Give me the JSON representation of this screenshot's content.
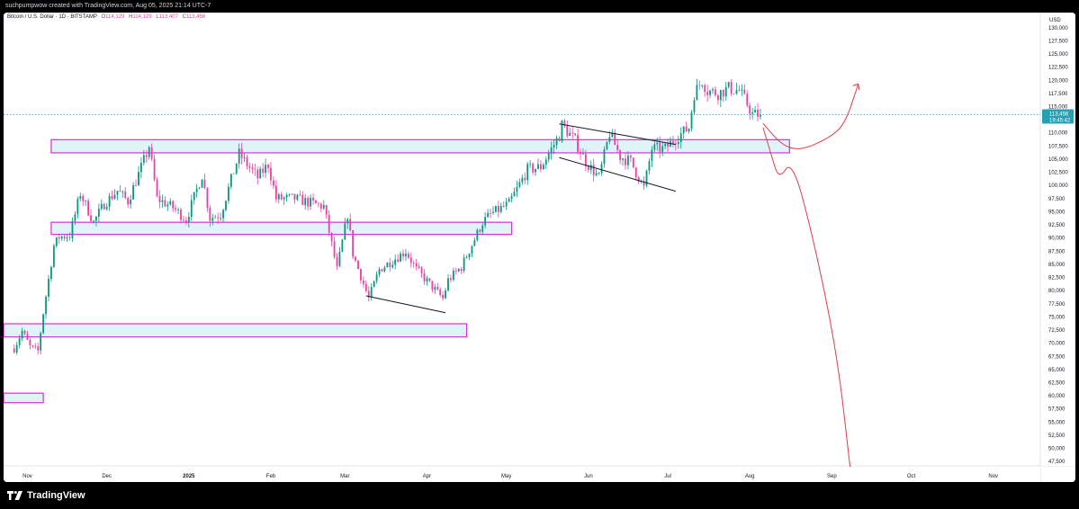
{
  "header": {
    "attribution": "suchpumpwow created with TradingView.com, Aug 05, 2025 21:14 UTC-7"
  },
  "legend": {
    "symbol": "Bitcoin / U.S. Dollar · 1D · BITSTAMP",
    "o_label": "O",
    "o_value": "114,129",
    "h_label": "H",
    "h_value": "114,129",
    "l_label": "L",
    "l_value": "113,407",
    "c_label": "C",
    "c_value": "113,456"
  },
  "footer": {
    "logo_text": "TradingView"
  },
  "colors": {
    "up": "#089981",
    "down": "#f23da5",
    "box_stroke": "#d42fd8",
    "box_fill": "#e0f4f8",
    "drawing_red": "#e03b46",
    "price_tag": "#26a0b3"
  },
  "chart_data": {
    "type": "candlestick",
    "currency_label": "USD",
    "y_ticks": [
      "130,000",
      "127,500",
      "125,000",
      "122,500",
      "120,000",
      "117,500",
      "115,000",
      "113,456",
      "110,000",
      "107,500",
      "105,000",
      "102,500",
      "100,000",
      "97,500",
      "95,000",
      "92,500",
      "90,000",
      "87,500",
      "85,000",
      "82,500",
      "80,000",
      "77,500",
      "75,000",
      "72,500",
      "70,000",
      "67,500",
      "65,000",
      "62,500",
      "60,000",
      "57,500",
      "55,000",
      "52,500",
      "50,000",
      "47,500"
    ],
    "y_tick_values": [
      130000,
      127500,
      125000,
      122500,
      120000,
      117500,
      115000,
      null,
      110000,
      107500,
      105000,
      102500,
      100000,
      97500,
      95000,
      92500,
      90000,
      87500,
      85000,
      82500,
      80000,
      77500,
      75000,
      72500,
      70000,
      67500,
      65000,
      62500,
      60000,
      57500,
      55000,
      52500,
      50000,
      47500
    ],
    "ylim": [
      46000,
      131500
    ],
    "last_price": 113456,
    "last_price_label": "113,456",
    "countdown_label": "19:45:42",
    "x_labels": [
      "Nov",
      "Dec",
      "2025",
      "Feb",
      "Mar",
      "Apr",
      "May",
      "Jun",
      "Jul",
      "Aug",
      "Sep",
      "Oct",
      "Nov"
    ],
    "x_label_dates": [
      "2024-11-01",
      "2024-12-01",
      "2025-01-01",
      "2025-02-01",
      "2025-03-01",
      "2025-04-01",
      "2025-05-01",
      "2025-06-01",
      "2025-07-01",
      "2025-08-01",
      "2025-09-01",
      "2025-10-01",
      "2025-11-01"
    ],
    "price_path": [
      [
        "2024-10-27",
        69000
      ],
      [
        "2024-10-30",
        72300
      ],
      [
        "2024-11-02",
        69300
      ],
      [
        "2024-11-05",
        68500
      ],
      [
        "2024-11-07",
        75800
      ],
      [
        "2024-11-11",
        88500
      ],
      [
        "2024-11-13",
        90200
      ],
      [
        "2024-11-17",
        90500
      ],
      [
        "2024-11-21",
        98500
      ],
      [
        "2024-11-26",
        93000
      ],
      [
        "2024-11-30",
        96500
      ],
      [
        "2024-12-05",
        99000
      ],
      [
        "2024-12-09",
        97000
      ],
      [
        "2024-12-16",
        106000
      ],
      [
        "2024-12-17",
        107500
      ],
      [
        "2024-12-20",
        97500
      ],
      [
        "2024-12-26",
        95800
      ],
      [
        "2024-12-31",
        93500
      ],
      [
        "2025-01-06",
        102000
      ],
      [
        "2025-01-09",
        93800
      ],
      [
        "2025-01-13",
        94500
      ],
      [
        "2025-01-20",
        106000
      ],
      [
        "2025-01-23",
        104000
      ],
      [
        "2025-01-27",
        101500
      ],
      [
        "2025-01-31",
        104000
      ],
      [
        "2025-02-03",
        97500
      ],
      [
        "2025-02-10",
        97500
      ],
      [
        "2025-02-21",
        96000
      ],
      [
        "2025-02-26",
        84000
      ],
      [
        "2025-03-02",
        94500
      ],
      [
        "2025-03-04",
        87000
      ],
      [
        "2025-03-10",
        78500
      ],
      [
        "2025-03-14",
        84000
      ],
      [
        "2025-03-24",
        87500
      ],
      [
        "2025-03-28",
        84000
      ],
      [
        "2025-04-07",
        78500
      ],
      [
        "2025-04-09",
        82000
      ],
      [
        "2025-04-14",
        84500
      ],
      [
        "2025-04-22",
        93000
      ],
      [
        "2025-04-25",
        94500
      ],
      [
        "2025-05-02",
        96500
      ],
      [
        "2025-05-09",
        103000
      ],
      [
        "2025-05-14",
        103500
      ],
      [
        "2025-05-21",
        109500
      ],
      [
        "2025-05-22",
        111500
      ],
      [
        "2025-05-27",
        108500
      ],
      [
        "2025-05-31",
        104500
      ],
      [
        "2025-06-05",
        101500
      ],
      [
        "2025-06-09",
        110000
      ],
      [
        "2025-06-13",
        105500
      ],
      [
        "2025-06-17",
        104500
      ],
      [
        "2025-06-22",
        99500
      ],
      [
        "2025-06-25",
        107000
      ],
      [
        "2025-06-30",
        107000
      ],
      [
        "2025-07-04",
        109000
      ],
      [
        "2025-07-09",
        111000
      ],
      [
        "2025-07-11",
        117500
      ],
      [
        "2025-07-14",
        120000
      ],
      [
        "2025-07-16",
        118000
      ],
      [
        "2025-07-20",
        117500
      ],
      [
        "2025-07-24",
        118500
      ],
      [
        "2025-07-28",
        118000
      ],
      [
        "2025-07-31",
        115500
      ],
      [
        "2025-08-02",
        113500
      ],
      [
        "2025-08-05",
        113456
      ]
    ],
    "zones": [
      {
        "from": "2024-11-10",
        "to": "2025-08-16",
        "low": 106200,
        "high": 108700
      },
      {
        "from": "2024-11-10",
        "to": "2025-05-03",
        "low": 90700,
        "high": 93000
      },
      {
        "from": "2024-10-23",
        "to": "2025-04-16",
        "low": 71200,
        "high": 73700
      },
      {
        "from": "2024-10-23",
        "to": "2024-11-07",
        "low": 58700,
        "high": 60500
      }
    ],
    "trendlines": [
      [
        [
          "2025-03-09",
          79000
        ],
        [
          "2025-04-08",
          75800
        ]
      ],
      [
        [
          "2025-05-21",
          111700
        ],
        [
          "2025-07-04",
          107800
        ]
      ],
      [
        [
          "2025-05-21",
          105300
        ],
        [
          "2025-07-04",
          98900
        ]
      ]
    ],
    "projection_up": [
      [
        "2025-08-06",
        111800
      ],
      [
        "2025-08-13",
        107700
      ],
      [
        "2025-08-20",
        106600
      ],
      [
        "2025-08-31",
        109000
      ],
      [
        "2025-09-06",
        111700
      ],
      [
        "2025-09-11",
        119300
      ]
    ],
    "projection_down": [
      [
        "2025-08-06",
        111000
      ],
      [
        "2025-08-09",
        106000
      ],
      [
        "2025-08-12",
        101000
      ],
      [
        "2025-08-17",
        105000
      ],
      [
        "2025-08-25",
        90000
      ],
      [
        "2025-09-03",
        68000
      ],
      [
        "2025-09-08",
        46000
      ]
    ]
  }
}
